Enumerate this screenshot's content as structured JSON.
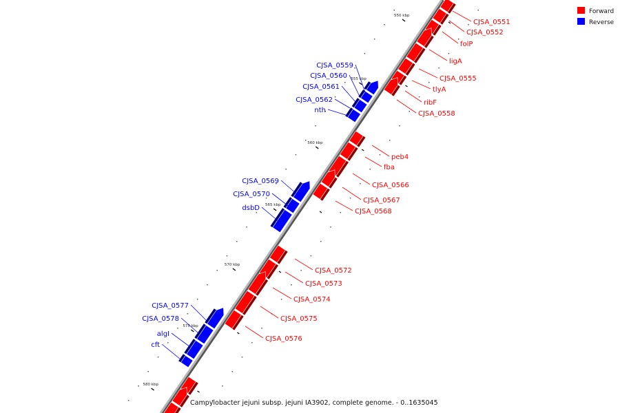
{
  "legend": [
    {
      "label": "Forward",
      "color": "#ff0000"
    },
    {
      "label": "Reverse",
      "color": "#0000ff"
    }
  ],
  "footer": "Campylobacter jejuni subsp. jejuni IA3902, complete genome. - 0..1635045",
  "colors": {
    "forward": "#ff0000",
    "reverse": "#0000ff",
    "backbone": "#aaaaaa"
  },
  "ticks": [
    "550 kbp",
    "555 kbp",
    "560 kbp",
    "565 kbp",
    "570 kbp",
    "575 kbp",
    "580 kbp"
  ],
  "forward_genes": [
    "CJSA_0551",
    "CJSA_0552",
    "folP",
    "ligA",
    "CJSA_0555",
    "tlyA",
    "ribF",
    "CJSA_0558",
    "peb4",
    "fba",
    "CJSA_0566",
    "CJSA_0567",
    "CJSA_0568",
    "CJSA_0572",
    "CJSA_0573",
    "CJSA_0574",
    "CJSA_0575",
    "CJSA_0576"
  ],
  "reverse_genes": [
    "CJSA_0559",
    "CJSA_0560",
    "CJSA_0561",
    "CJSA_0562",
    "nth",
    "CJSA_0569",
    "CJSA_0570",
    "dsbD",
    "CJSA_0577",
    "CJSA_0578",
    "algI",
    "cft"
  ]
}
